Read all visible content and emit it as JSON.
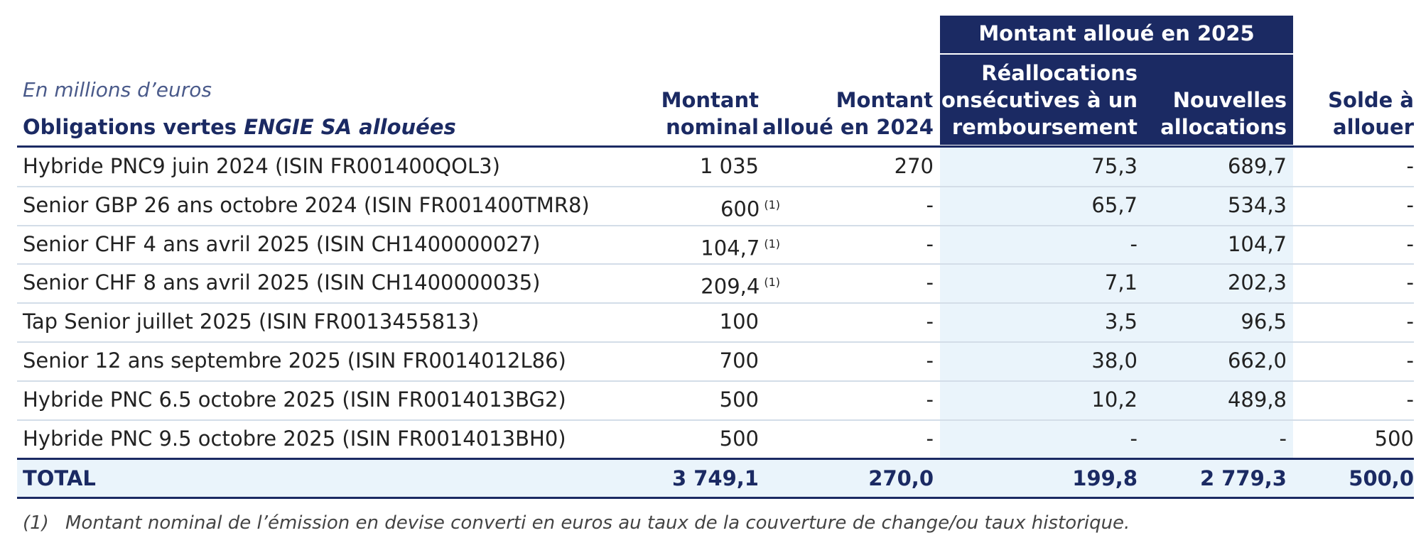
{
  "header": {
    "unit": "En millions d’euros",
    "row_header": {
      "text": "Obligations vertes ",
      "emphasis": "ENGIE SA allouées"
    },
    "columns": {
      "nominal": [
        "Montant",
        "nominal"
      ],
      "alloue_2024": [
        "Montant",
        "alloué en 2024"
      ],
      "group_2025": "Montant alloué en 2025",
      "reallocations": [
        "Réallocations",
        "consécutives à un",
        "remboursement"
      ],
      "nouvelles": [
        "Nouvelles",
        "allocations"
      ],
      "solde": [
        "Solde à",
        "allouer"
      ]
    }
  },
  "table": {
    "rows": [
      [
        "Hybride PNC9 juin 2024 (ISIN FR001400QOL3)",
        "1 035",
        null,
        "270",
        "75,3",
        "689,7",
        "-"
      ],
      [
        "Senior GBP 26 ans octobre 2024 (ISIN FR001400TMR8)",
        "600",
        "(1)",
        "-",
        "65,7",
        "534,3",
        "-"
      ],
      [
        "Senior CHF 4 ans avril 2025 (ISIN CH1400000027)",
        "104,7",
        "(1)",
        "-",
        "-",
        "104,7",
        "-"
      ],
      [
        "Senior CHF 8 ans avril 2025 (ISIN CH1400000035)",
        "209,4",
        "(1)",
        "-",
        "7,1",
        "202,3",
        "-"
      ],
      [
        "Tap Senior juillet 2025 (ISIN FR0013455813)",
        "100",
        null,
        "-",
        "3,5",
        "96,5",
        "-"
      ],
      [
        "Senior 12 ans septembre 2025 (ISIN FR0014012L86)",
        "700",
        null,
        "-",
        "38,0",
        "662,0",
        "-"
      ],
      [
        "Hybride PNC 6.5 octobre 2025 (ISIN FR0014013BG2)",
        "500",
        null,
        "-",
        "10,2",
        "489,8",
        "-"
      ],
      [
        "Hybride PNC 9.5 octobre 2025 (ISIN FR0014013BH0)",
        "500",
        null,
        "-",
        "-",
        "-",
        "500"
      ]
    ],
    "total": [
      "TOTAL",
      "3 749,1",
      null,
      "270,0",
      "199,8",
      "2 779,3",
      "500,0"
    ]
  },
  "footnote": {
    "marker": "(1)",
    "text": "Montant nominal de l’émission en devise converti en euros au taux de la couverture de change/ou taux historique."
  }
}
